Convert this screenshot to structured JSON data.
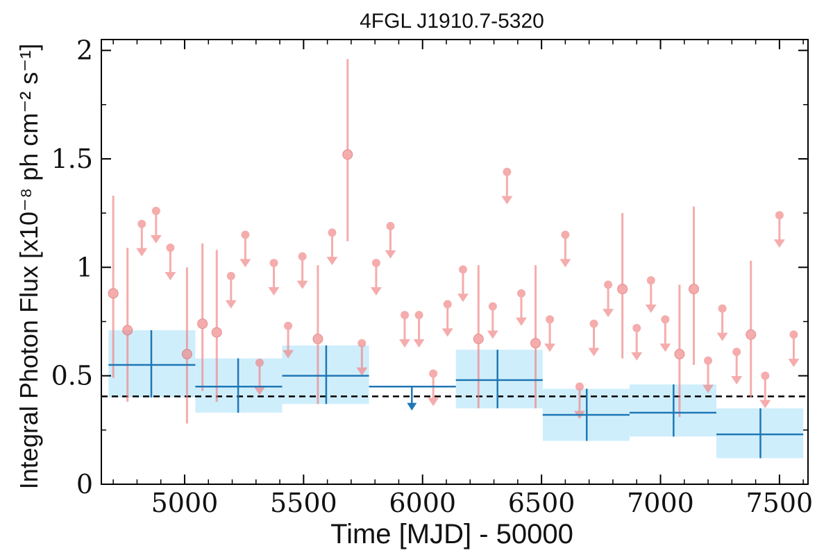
{
  "chart_data": {
    "type": "scatter",
    "title": "4FGL J1910.7-5320",
    "xlabel": "Time [MJD] - 50000",
    "ylabel": "Integral Photon Flux [x10⁻⁸ ph cm⁻² s⁻¹]",
    "xlim": [
      4650,
      7620
    ],
    "ylim": [
      0,
      2.05
    ],
    "xticks": [
      5000,
      5500,
      6000,
      6500,
      7000,
      7500
    ],
    "xtick_labels": [
      "5000",
      "5500",
      "6000",
      "6500",
      "7000",
      "7500"
    ],
    "yticks": [
      0,
      0.5,
      1,
      1.5,
      2
    ],
    "ytick_labels": [
      "0",
      "0.5",
      "1",
      "1.5",
      "2"
    ],
    "reference_line": {
      "y": 0.405,
      "style": "dashed"
    },
    "colors": {
      "short_bins": "#f08080",
      "long_bins": "#1f77b4",
      "band": "#cfeefc",
      "reference": "#000000"
    },
    "series": [
      {
        "type": "detections",
        "values": [
          {
            "x": 4700,
            "y": 0.88,
            "ylo": 0.49,
            "yhi": 1.33
          },
          {
            "x": 4760,
            "y": 0.71,
            "ylo": 0.38,
            "yhi": 1.09
          },
          {
            "x": 5010,
            "y": 0.6,
            "ylo": 0.28,
            "yhi": 1.0
          },
          {
            "x": 5075,
            "y": 0.74,
            "ylo": 0.43,
            "yhi": 1.11
          },
          {
            "x": 5135,
            "y": 0.7,
            "ylo": 0.38,
            "yhi": 1.08
          },
          {
            "x": 5560,
            "y": 0.67,
            "ylo": 0.37,
            "yhi": 1.01
          },
          {
            "x": 5685,
            "y": 1.52,
            "ylo": 1.12,
            "yhi": 1.96
          },
          {
            "x": 6235,
            "y": 0.67,
            "ylo": 0.35,
            "yhi": 1.01
          },
          {
            "x": 6475,
            "y": 0.65,
            "ylo": 0.35,
            "yhi": 1.01
          },
          {
            "x": 6840,
            "y": 0.9,
            "ylo": 0.58,
            "yhi": 1.25
          },
          {
            "x": 7080,
            "y": 0.6,
            "ylo": 0.31,
            "yhi": 0.92
          },
          {
            "x": 7140,
            "y": 0.9,
            "ylo": 0.55,
            "yhi": 1.28
          },
          {
            "x": 7380,
            "y": 0.69,
            "ylo": 0.4,
            "yhi": 1.03
          }
        ]
      },
      {
        "type": "upper_limits",
        "values": [
          {
            "x": 4820,
            "y": 1.2
          },
          {
            "x": 4880,
            "y": 1.26
          },
          {
            "x": 4940,
            "y": 1.09
          },
          {
            "x": 5195,
            "y": 0.96
          },
          {
            "x": 5255,
            "y": 1.15
          },
          {
            "x": 5315,
            "y": 0.56
          },
          {
            "x": 5375,
            "y": 1.02
          },
          {
            "x": 5435,
            "y": 0.73
          },
          {
            "x": 5495,
            "y": 1.05
          },
          {
            "x": 5620,
            "y": 1.16
          },
          {
            "x": 5745,
            "y": 0.65
          },
          {
            "x": 5805,
            "y": 1.02
          },
          {
            "x": 5865,
            "y": 1.19
          },
          {
            "x": 5925,
            "y": 0.78
          },
          {
            "x": 5985,
            "y": 0.78
          },
          {
            "x": 6045,
            "y": 0.51
          },
          {
            "x": 6105,
            "y": 0.83
          },
          {
            "x": 6170,
            "y": 0.99
          },
          {
            "x": 6295,
            "y": 0.82
          },
          {
            "x": 6355,
            "y": 1.44
          },
          {
            "x": 6415,
            "y": 0.88
          },
          {
            "x": 6535,
            "y": 0.76
          },
          {
            "x": 6600,
            "y": 1.15
          },
          {
            "x": 6660,
            "y": 0.45
          },
          {
            "x": 6720,
            "y": 0.74
          },
          {
            "x": 6780,
            "y": 0.92
          },
          {
            "x": 6900,
            "y": 0.72
          },
          {
            "x": 6960,
            "y": 0.94
          },
          {
            "x": 7020,
            "y": 0.76
          },
          {
            "x": 7200,
            "y": 0.57
          },
          {
            "x": 7260,
            "y": 0.81
          },
          {
            "x": 7320,
            "y": 0.61
          },
          {
            "x": 7440,
            "y": 0.5
          },
          {
            "x": 7500,
            "y": 1.24
          },
          {
            "x": 7560,
            "y": 0.69
          }
        ]
      },
      {
        "type": "long_bins",
        "values": [
          {
            "x": 4860,
            "xlo": 4680,
            "xhi": 5045,
            "y": 0.55,
            "ylo": 0.4,
            "yhi": 0.71
          },
          {
            "x": 5225,
            "xlo": 5045,
            "xhi": 5410,
            "y": 0.45,
            "ylo": 0.33,
            "yhi": 0.58
          },
          {
            "x": 5595,
            "xlo": 5410,
            "xhi": 5775,
            "y": 0.5,
            "ylo": 0.37,
            "yhi": 0.64
          },
          {
            "x": 6315,
            "xlo": 6140,
            "xhi": 6505,
            "y": 0.48,
            "ylo": 0.35,
            "yhi": 0.62
          },
          {
            "x": 6690,
            "xlo": 6505,
            "xhi": 6870,
            "y": 0.32,
            "ylo": 0.2,
            "yhi": 0.44
          },
          {
            "x": 7055,
            "xlo": 6870,
            "xhi": 7235,
            "y": 0.33,
            "ylo": 0.22,
            "yhi": 0.46
          },
          {
            "x": 7420,
            "xlo": 7235,
            "xhi": 7600,
            "y": 0.23,
            "ylo": 0.12,
            "yhi": 0.35
          }
        ]
      },
      {
        "type": "long_bin_upper_limit",
        "values": [
          {
            "x": 5955,
            "xlo": 5775,
            "xhi": 6140,
            "y": 0.45
          }
        ]
      }
    ]
  }
}
